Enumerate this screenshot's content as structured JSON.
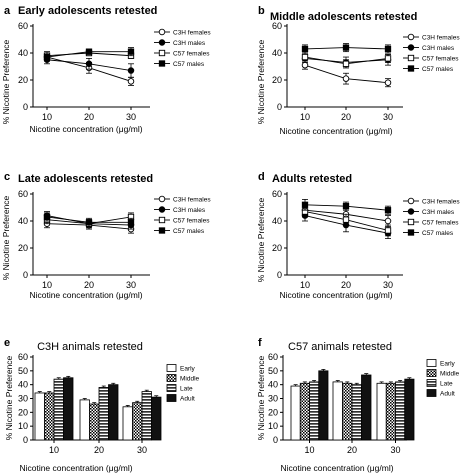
{
  "chart_data": [
    {
      "panel": "a",
      "type": "line",
      "title": "Early adolescents retested",
      "xlabel": "Nicotine concentration (μg/ml)",
      "ylabel": "% Nicotine Preference",
      "x": [
        10,
        20,
        30
      ],
      "xticks": [
        "10",
        "20",
        "30"
      ],
      "ylim": [
        0,
        60
      ],
      "yticks": [
        0,
        20,
        40,
        60
      ],
      "legend_position": "right",
      "series": [
        {
          "name": "C3H females",
          "marker": "open-circle",
          "values": [
            37,
            29,
            19
          ],
          "errors": [
            3,
            4,
            3
          ]
        },
        {
          "name": "C3H males",
          "marker": "filled-circle",
          "values": [
            35,
            32,
            27
          ],
          "errors": [
            3,
            4,
            5
          ]
        },
        {
          "name": "C57 females",
          "marker": "open-square",
          "values": [
            38,
            40,
            38
          ],
          "errors": [
            3,
            2,
            2
          ]
        },
        {
          "name": "C57 males",
          "marker": "filled-square",
          "values": [
            37,
            41,
            41
          ],
          "errors": [
            3,
            2,
            3
          ]
        }
      ]
    },
    {
      "panel": "b",
      "type": "line",
      "title": "Middle adolescents retested",
      "xlabel": "Nicotine concentration (μg/ml)",
      "ylabel": "% Nicotine Preference",
      "x": [
        10,
        20,
        30
      ],
      "xticks": [
        "10",
        "20",
        "30"
      ],
      "ylim": [
        0,
        60
      ],
      "yticks": [
        0,
        20,
        40,
        60
      ],
      "legend_position": "right",
      "series": [
        {
          "name": "C3H females",
          "marker": "open-circle",
          "values": [
            31,
            21,
            18
          ],
          "errors": [
            3,
            4,
            3
          ]
        },
        {
          "name": "C3H males",
          "marker": "filled-circle",
          "values": [
            36,
            33,
            35
          ],
          "errors": [
            3,
            4,
            4
          ]
        },
        {
          "name": "C57 females",
          "marker": "open-square",
          "values": [
            37,
            32,
            36
          ],
          "errors": [
            3,
            3,
            3
          ]
        },
        {
          "name": "C57 males",
          "marker": "filled-square",
          "values": [
            43,
            44,
            43
          ],
          "errors": [
            3,
            3,
            3
          ]
        }
      ]
    },
    {
      "panel": "c",
      "type": "line",
      "title": "Late adolescents retested",
      "xlabel": "Nicotine concentration (μg/ml)",
      "ylabel": "% Nicotine Preference",
      "x": [
        10,
        20,
        30
      ],
      "xticks": [
        "10",
        "20",
        "30"
      ],
      "ylim": [
        0,
        60
      ],
      "yticks": [
        0,
        20,
        40,
        60
      ],
      "legend_position": "right",
      "series": [
        {
          "name": "C3H females",
          "marker": "open-circle",
          "values": [
            38,
            37,
            34
          ],
          "errors": [
            3,
            3,
            3
          ]
        },
        {
          "name": "C3H males",
          "marker": "filled-circle",
          "values": [
            44,
            38,
            37
          ],
          "errors": [
            3,
            3,
            3
          ]
        },
        {
          "name": "C57 females",
          "marker": "open-square",
          "values": [
            41,
            38,
            43
          ],
          "errors": [
            3,
            3,
            3
          ]
        },
        {
          "name": "C57 males",
          "marker": "filled-square",
          "values": [
            43,
            39,
            39
          ],
          "errors": [
            3,
            3,
            3
          ]
        }
      ]
    },
    {
      "panel": "d",
      "type": "line",
      "title": "Adults retested",
      "xlabel": "Nicotine concentration (μg/ml)",
      "ylabel": "% Nicotine Preference",
      "x": [
        10,
        20,
        30
      ],
      "xticks": [
        "10",
        "20",
        "30"
      ],
      "ylim": [
        0,
        60
      ],
      "yticks": [
        0,
        20,
        40,
        60
      ],
      "legend_position": "right",
      "series": [
        {
          "name": "C3H females",
          "marker": "open-circle",
          "values": [
            48,
            45,
            40
          ],
          "errors": [
            4,
            4,
            4
          ]
        },
        {
          "name": "C3H males",
          "marker": "filled-circle",
          "values": [
            44,
            37,
            31
          ],
          "errors": [
            4,
            5,
            4
          ]
        },
        {
          "name": "C57 females",
          "marker": "open-square",
          "values": [
            47,
            41,
            33
          ],
          "errors": [
            4,
            4,
            4
          ]
        },
        {
          "name": "C57 males",
          "marker": "filled-square",
          "values": [
            52,
            51,
            48
          ],
          "errors": [
            4,
            3,
            3
          ]
        }
      ]
    },
    {
      "panel": "e",
      "type": "bar",
      "title": "C3H animals retested",
      "xlabel": "Nicotine concentration (μg/ml)",
      "ylabel": "% Nicotine Preference",
      "categories": [
        "10",
        "20",
        "30"
      ],
      "ylim": [
        0,
        60
      ],
      "yticks": [
        0,
        10,
        20,
        30,
        40,
        50,
        60
      ],
      "legend_position": "right",
      "series": [
        {
          "name": "Early",
          "fill": "white",
          "values": [
            34,
            29,
            24
          ],
          "errors": [
            1,
            1,
            1
          ]
        },
        {
          "name": "Middle",
          "fill": "check",
          "values": [
            34,
            26,
            27
          ],
          "errors": [
            1,
            1,
            1
          ]
        },
        {
          "name": "Late",
          "fill": "stripes",
          "values": [
            44,
            38,
            35
          ],
          "errors": [
            1,
            1,
            1
          ]
        },
        {
          "name": "Adult",
          "fill": "black",
          "values": [
            45,
            40,
            31
          ],
          "errors": [
            1,
            1,
            1
          ]
        }
      ]
    },
    {
      "panel": "f",
      "type": "bar",
      "title": "C57 animals retested",
      "xlabel": "Nicotine concentration (μg/ml)",
      "ylabel": "% Nicotine Preference",
      "categories": [
        "10",
        "20",
        "30"
      ],
      "ylim": [
        0,
        60
      ],
      "yticks": [
        0,
        10,
        20,
        30,
        40,
        50,
        60
      ],
      "legend_position": "right",
      "series": [
        {
          "name": "Early",
          "fill": "white",
          "values": [
            39,
            42,
            41
          ],
          "errors": [
            1,
            1,
            1
          ]
        },
        {
          "name": "Middle",
          "fill": "check",
          "values": [
            41,
            41,
            41
          ],
          "errors": [
            1,
            1,
            1
          ]
        },
        {
          "name": "Late",
          "fill": "stripes",
          "values": [
            42,
            40,
            42
          ],
          "errors": [
            1,
            1,
            1
          ]
        },
        {
          "name": "Adult",
          "fill": "black",
          "values": [
            50,
            47,
            44
          ],
          "errors": [
            1,
            1,
            1
          ]
        }
      ]
    }
  ]
}
